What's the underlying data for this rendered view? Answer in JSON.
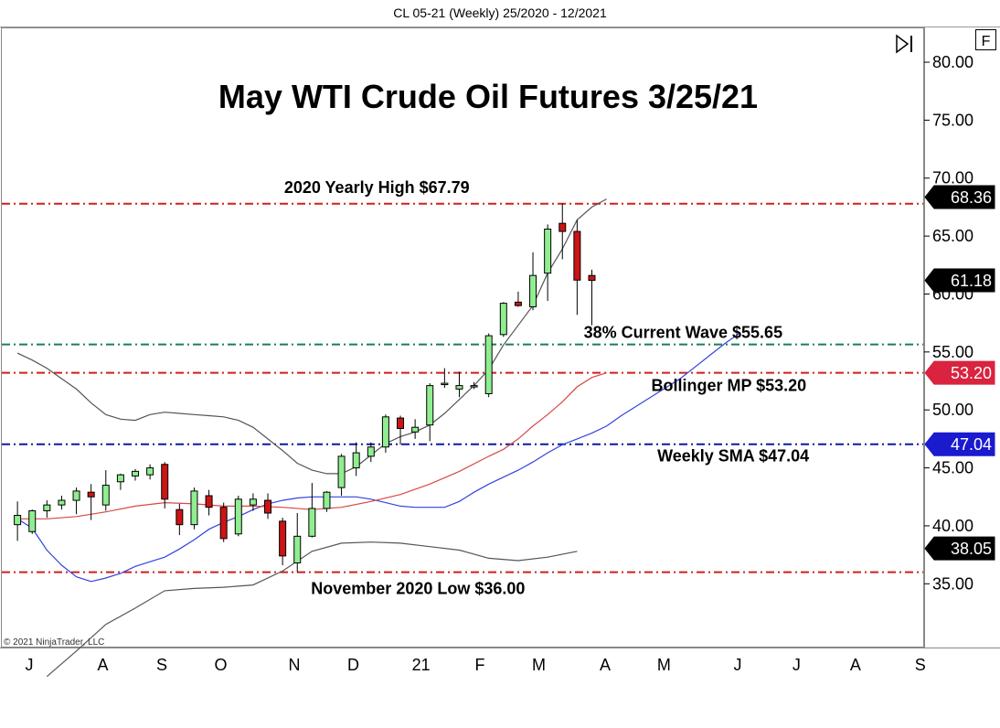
{
  "header": "CL 05-21 (Weekly)  25/2020 - 12/2021",
  "copyright": "© 2021 NinjaTrader, LLC",
  "toolbar": {
    "f_button": "F",
    "play_icon": "play-end-icon"
  },
  "chart_data": {
    "type": "candlestick",
    "title": "May WTI Crude Oil Futures 3/25/21",
    "ylim": [
      29.5,
      83
    ],
    "y_ticks": [
      35,
      40,
      45,
      50,
      55,
      60,
      65,
      70,
      75,
      80
    ],
    "y_tick_labels": [
      "35.00",
      "40.00",
      "45.00",
      "50.00",
      "55.00",
      "60.00",
      "65.00",
      "70.00",
      "75.00",
      "80.00"
    ],
    "x_range_weeks": [
      -1,
      61.5
    ],
    "x_ticks": [
      {
        "label": "J",
        "week": 0.8
      },
      {
        "label": "A",
        "week": 5.8
      },
      {
        "label": "S",
        "week": 9.8
      },
      {
        "label": "O",
        "week": 13.8
      },
      {
        "label": "N",
        "week": 18.8
      },
      {
        "label": "D",
        "week": 22.8
      },
      {
        "label": "21",
        "week": 27.4
      },
      {
        "label": "F",
        "week": 31.4
      },
      {
        "label": "M",
        "week": 35.4
      },
      {
        "label": "A",
        "week": 39.9
      },
      {
        "label": "M",
        "week": 43.9
      },
      {
        "label": "J",
        "week": 48.9
      },
      {
        "label": "J",
        "week": 52.9
      },
      {
        "label": "A",
        "week": 56.9
      },
      {
        "label": "S",
        "week": 61.3
      }
    ],
    "candles": [
      {
        "o": 40.1,
        "h": 42.1,
        "l": 38.7,
        "c": 40.9
      },
      {
        "o": 39.5,
        "h": 41.4,
        "l": 39.3,
        "c": 41.3
      },
      {
        "o": 41.3,
        "h": 42.2,
        "l": 40.7,
        "c": 41.8
      },
      {
        "o": 41.8,
        "h": 42.6,
        "l": 41.4,
        "c": 42.2
      },
      {
        "o": 42.2,
        "h": 43.3,
        "l": 41.0,
        "c": 43.0
      },
      {
        "o": 42.9,
        "h": 43.6,
        "l": 40.5,
        "c": 42.5
      },
      {
        "o": 41.8,
        "h": 44.8,
        "l": 41.3,
        "c": 43.5
      },
      {
        "o": 43.8,
        "h": 44.5,
        "l": 43.1,
        "c": 44.4
      },
      {
        "o": 44.3,
        "h": 44.9,
        "l": 43.9,
        "c": 44.7
      },
      {
        "o": 44.4,
        "h": 45.3,
        "l": 44.0,
        "c": 45.0
      },
      {
        "o": 45.3,
        "h": 45.5,
        "l": 41.5,
        "c": 42.3
      },
      {
        "o": 41.4,
        "h": 41.9,
        "l": 39.2,
        "c": 40.1
      },
      {
        "o": 40.1,
        "h": 43.3,
        "l": 39.7,
        "c": 43.0
      },
      {
        "o": 42.6,
        "h": 43.1,
        "l": 40.9,
        "c": 41.6
      },
      {
        "o": 41.6,
        "h": 42.0,
        "l": 38.6,
        "c": 38.9
      },
      {
        "o": 39.3,
        "h": 42.6,
        "l": 39.1,
        "c": 42.3
      },
      {
        "o": 41.8,
        "h": 42.8,
        "l": 41.3,
        "c": 42.3
      },
      {
        "o": 42.2,
        "h": 42.8,
        "l": 40.6,
        "c": 41.1
      },
      {
        "o": 40.4,
        "h": 40.7,
        "l": 36.6,
        "c": 37.4
      },
      {
        "o": 36.8,
        "h": 41.1,
        "l": 36.0,
        "c": 39.1
      },
      {
        "o": 39.1,
        "h": 43.7,
        "l": 39.0,
        "c": 41.5
      },
      {
        "o": 41.5,
        "h": 43.0,
        "l": 41.2,
        "c": 42.9
      },
      {
        "o": 43.3,
        "h": 46.2,
        "l": 42.6,
        "c": 46.0
      },
      {
        "o": 45.0,
        "h": 47.2,
        "l": 44.3,
        "c": 46.3
      },
      {
        "o": 46.0,
        "h": 47.2,
        "l": 45.5,
        "c": 46.8
      },
      {
        "o": 46.8,
        "h": 49.6,
        "l": 46.3,
        "c": 49.4
      },
      {
        "o": 49.3,
        "h": 49.5,
        "l": 47.0,
        "c": 48.4
      },
      {
        "o": 48.1,
        "h": 49.2,
        "l": 47.5,
        "c": 48.5
      },
      {
        "o": 48.7,
        "h": 52.3,
        "l": 47.3,
        "c": 52.1
      },
      {
        "o": 52.2,
        "h": 53.6,
        "l": 51.9,
        "c": 52.3
      },
      {
        "o": 51.8,
        "h": 53.3,
        "l": 51.1,
        "c": 52.1
      },
      {
        "o": 52.0,
        "h": 52.4,
        "l": 51.8,
        "c": 52.1
      },
      {
        "o": 51.4,
        "h": 56.6,
        "l": 51.1,
        "c": 56.4
      },
      {
        "o": 56.5,
        "h": 59.3,
        "l": 56.3,
        "c": 59.2
      },
      {
        "o": 59.3,
        "h": 60.2,
        "l": 58.9,
        "c": 59.0
      },
      {
        "o": 58.9,
        "h": 63.6,
        "l": 58.6,
        "c": 61.6
      },
      {
        "o": 61.8,
        "h": 66.0,
        "l": 59.4,
        "c": 65.6
      },
      {
        "o": 66.1,
        "h": 67.8,
        "l": 63.0,
        "c": 65.4
      },
      {
        "o": 65.4,
        "h": 66.4,
        "l": 58.2,
        "c": 61.2
      },
      {
        "o": 61.6,
        "h": 62.1,
        "l": 57.3,
        "c": 61.18
      }
    ],
    "indicators": [
      {
        "label": "sma",
        "color": "#3344dd",
        "points": [
          [
            0,
            40.6
          ],
          [
            1,
            39.8
          ],
          [
            2,
            37.9
          ],
          [
            3,
            36.6
          ],
          [
            4,
            35.6
          ],
          [
            5,
            35.2
          ],
          [
            6,
            35.5
          ],
          [
            7,
            35.9
          ],
          [
            8,
            36.5
          ],
          [
            9,
            36.9
          ],
          [
            10,
            37.3
          ],
          [
            11,
            38.0
          ],
          [
            12,
            38.8
          ],
          [
            13,
            39.7
          ],
          [
            14,
            40.3
          ],
          [
            15,
            40.8
          ],
          [
            16,
            41.4
          ],
          [
            17,
            41.9
          ],
          [
            18,
            42.2
          ],
          [
            19,
            42.4
          ],
          [
            20,
            42.5
          ],
          [
            21,
            42.5
          ],
          [
            22,
            42.5
          ],
          [
            23,
            42.5
          ],
          [
            24,
            42.3
          ],
          [
            25,
            42.0
          ],
          [
            26,
            41.7
          ],
          [
            27,
            41.6
          ],
          [
            28,
            41.6
          ],
          [
            29,
            41.6
          ],
          [
            30,
            42.1
          ],
          [
            31,
            42.9
          ],
          [
            32,
            43.6
          ],
          [
            33,
            44.2
          ],
          [
            34,
            44.8
          ],
          [
            35,
            45.5
          ],
          [
            36,
            46.3
          ],
          [
            37,
            47.0
          ],
          [
            38,
            47.5
          ],
          [
            39,
            48.0
          ],
          [
            40,
            48.6
          ],
          [
            41,
            49.5
          ],
          [
            42,
            50.3
          ],
          [
            43,
            51.1
          ],
          [
            44,
            51.9
          ],
          [
            45,
            52.7
          ],
          [
            46,
            53.7
          ],
          [
            47,
            54.7
          ],
          [
            48,
            55.7
          ],
          [
            49,
            56.6
          ]
        ]
      },
      {
        "label": "bollinger-mid",
        "color": "#d94848",
        "points": [
          [
            0,
            40.6
          ],
          [
            2,
            40.6
          ],
          [
            4,
            40.8
          ],
          [
            6,
            41.2
          ],
          [
            8,
            41.7
          ],
          [
            10,
            42.0
          ],
          [
            12,
            41.9
          ],
          [
            14,
            41.7
          ],
          [
            16,
            41.7
          ],
          [
            18,
            41.6
          ],
          [
            20,
            41.4
          ],
          [
            22,
            41.6
          ],
          [
            24,
            42.1
          ],
          [
            26,
            42.7
          ],
          [
            28,
            43.6
          ],
          [
            30,
            44.7
          ],
          [
            32,
            46.0
          ],
          [
            33,
            46.6
          ],
          [
            34,
            47.5
          ],
          [
            35,
            48.6
          ],
          [
            36,
            49.6
          ],
          [
            37,
            50.7
          ],
          [
            38,
            52.0
          ],
          [
            39,
            52.8
          ],
          [
            40,
            53.2
          ]
        ]
      },
      {
        "label": "bollinger-upper",
        "color": "#555555",
        "points": [
          [
            0,
            54.9
          ],
          [
            1,
            54.3
          ],
          [
            2,
            53.6
          ],
          [
            3,
            52.7
          ],
          [
            4,
            51.8
          ],
          [
            5,
            50.6
          ],
          [
            6,
            49.6
          ],
          [
            7,
            49.2
          ],
          [
            8,
            49.1
          ],
          [
            9,
            49.6
          ],
          [
            10,
            49.8
          ],
          [
            11,
            49.7
          ],
          [
            12,
            49.6
          ],
          [
            13,
            49.5
          ],
          [
            14,
            49.4
          ],
          [
            15,
            49.1
          ],
          [
            16,
            48.5
          ],
          [
            17,
            47.5
          ],
          [
            18,
            46.5
          ],
          [
            19,
            45.4
          ],
          [
            20,
            44.8
          ],
          [
            21,
            44.5
          ],
          [
            22,
            44.5
          ],
          [
            23,
            45.1
          ],
          [
            24,
            46.1
          ],
          [
            25,
            47.1
          ],
          [
            26,
            47.7
          ],
          [
            27,
            48.1
          ],
          [
            28,
            48.7
          ],
          [
            29,
            49.7
          ],
          [
            30,
            50.9
          ],
          [
            31,
            52.1
          ],
          [
            32,
            53.5
          ],
          [
            33,
            55.6
          ],
          [
            34,
            57.3
          ],
          [
            35,
            59.0
          ],
          [
            36,
            61.8
          ],
          [
            37,
            63.9
          ],
          [
            38,
            66.4
          ],
          [
            39,
            67.5
          ],
          [
            40,
            68.2
          ]
        ]
      },
      {
        "label": "bollinger-lower",
        "color": "#555555",
        "points": [
          [
            2,
            27.0
          ],
          [
            4,
            29.2
          ],
          [
            6,
            31.5
          ],
          [
            8,
            32.9
          ],
          [
            10,
            34.4
          ],
          [
            12,
            34.6
          ],
          [
            14,
            34.7
          ],
          [
            16,
            34.9
          ],
          [
            18,
            36.1
          ],
          [
            20,
            37.8
          ],
          [
            22,
            38.5
          ],
          [
            24,
            38.6
          ],
          [
            26,
            38.5
          ],
          [
            28,
            38.2
          ],
          [
            30,
            37.9
          ],
          [
            32,
            37.2
          ],
          [
            34,
            37.0
          ],
          [
            36,
            37.3
          ],
          [
            38,
            37.8
          ]
        ]
      }
    ],
    "hlines": [
      {
        "label": "2020 Yearly High $67.79",
        "value": 67.79,
        "color": "#d21f1f",
        "dash": "dashdot",
        "label_at_week": 24.4
      },
      {
        "label": "38% Current Wave $55.65",
        "value": 55.65,
        "color": "#1e7f50",
        "dash": "dashdot",
        "label_at_week": 45.2
      },
      {
        "label": "Bollinger MP $53.20",
        "value": 53.2,
        "color": "#d21f1f",
        "dash": "dashdot",
        "label_at_week": 48.3
      },
      {
        "label": "Weekly SMA $47.04",
        "value": 47.04,
        "color": "#0e1a9e",
        "dash": "dashdot",
        "label_at_week": 48.6
      },
      {
        "label": "November 2020 Low $36.00",
        "value": 36.0,
        "color": "#d21f1f",
        "dash": "dashdot",
        "label_at_week": 27.2
      }
    ],
    "price_badges": [
      {
        "label": "68.36",
        "value": 68.36,
        "color": "#000000"
      },
      {
        "label": "61.18",
        "value": 61.18,
        "color": "#000000"
      },
      {
        "label": "53.20",
        "value": 53.2,
        "color": "#d9233f"
      },
      {
        "label": "47.04",
        "value": 47.04,
        "color": "#1a1acf"
      },
      {
        "label": "38.05",
        "value": 38.05,
        "color": "#000000"
      }
    ],
    "colors": {
      "up": "#90ee90",
      "down": "#cc1414",
      "candle_outline": "#000000"
    }
  }
}
